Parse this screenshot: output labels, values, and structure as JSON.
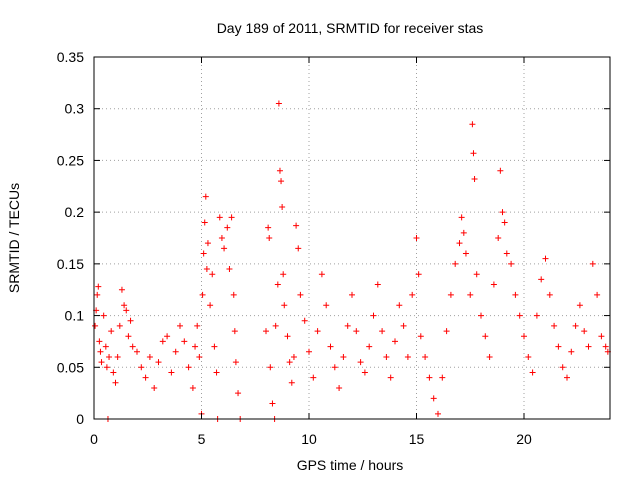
{
  "chart_data": {
    "type": "scatter",
    "title": "Day 189 of 2011, SRMTID for receiver stas",
    "xlabel": "GPS time / hours",
    "ylabel": "SRMTID / TECUs",
    "xlim": [
      0,
      24
    ],
    "ylim": [
      0,
      0.35
    ],
    "xticks": [
      0,
      5,
      10,
      15,
      20
    ],
    "xtick_labels": [
      "0",
      "5",
      "10",
      "15",
      "20"
    ],
    "yticks": [
      0,
      0.05,
      0.1,
      0.15,
      0.2,
      0.25,
      0.3,
      0.35
    ],
    "ytick_labels": [
      "0",
      "0.05",
      "0.1",
      "0.15",
      "0.2",
      "0.25",
      "0.3",
      "0.35"
    ],
    "grid": true,
    "marker": "+",
    "series": [
      {
        "name": "SRMTID",
        "color": "#ff0000",
        "points": [
          [
            0.05,
            0.09
          ],
          [
            0.1,
            0.105
          ],
          [
            0.15,
            0.12
          ],
          [
            0.2,
            0.128
          ],
          [
            0.25,
            0.075
          ],
          [
            0.3,
            0.065
          ],
          [
            0.35,
            0.055
          ],
          [
            0.45,
            0.1
          ],
          [
            0.55,
            0.07
          ],
          [
            0.6,
            0.05
          ],
          [
            0.65,
            0.0
          ],
          [
            0.7,
            0.06
          ],
          [
            0.8,
            0.085
          ],
          [
            0.9,
            0.045
          ],
          [
            1.0,
            0.035
          ],
          [
            1.1,
            0.06
          ],
          [
            1.2,
            0.09
          ],
          [
            1.3,
            0.125
          ],
          [
            1.4,
            0.11
          ],
          [
            1.5,
            0.105
          ],
          [
            1.6,
            0.08
          ],
          [
            1.7,
            0.095
          ],
          [
            1.8,
            0.07
          ],
          [
            2.0,
            0.065
          ],
          [
            2.2,
            0.05
          ],
          [
            2.4,
            0.04
          ],
          [
            2.6,
            0.06
          ],
          [
            2.8,
            0.03
          ],
          [
            3.0,
            0.055
          ],
          [
            3.2,
            0.075
          ],
          [
            3.4,
            0.08
          ],
          [
            3.6,
            0.045
          ],
          [
            3.8,
            0.065
          ],
          [
            4.0,
            0.09
          ],
          [
            4.2,
            0.075
          ],
          [
            4.4,
            0.05
          ],
          [
            4.6,
            0.03
          ],
          [
            4.7,
            0.07
          ],
          [
            4.8,
            0.09
          ],
          [
            4.9,
            0.06
          ],
          [
            5.0,
            0.005
          ],
          [
            5.05,
            0.12
          ],
          [
            5.1,
            0.16
          ],
          [
            5.15,
            0.19
          ],
          [
            5.2,
            0.215
          ],
          [
            5.25,
            0.145
          ],
          [
            5.3,
            0.17
          ],
          [
            5.4,
            0.11
          ],
          [
            5.5,
            0.14
          ],
          [
            5.6,
            0.07
          ],
          [
            5.7,
            0.045
          ],
          [
            5.75,
            0.0
          ],
          [
            5.85,
            0.195
          ],
          [
            5.95,
            0.175
          ],
          [
            6.05,
            0.165
          ],
          [
            6.2,
            0.185
          ],
          [
            6.3,
            0.145
          ],
          [
            6.4,
            0.195
          ],
          [
            6.5,
            0.12
          ],
          [
            6.55,
            0.085
          ],
          [
            6.6,
            0.055
          ],
          [
            6.7,
            0.025
          ],
          [
            6.8,
            0.0
          ],
          [
            8.0,
            0.085
          ],
          [
            8.1,
            0.185
          ],
          [
            8.15,
            0.175
          ],
          [
            8.2,
            0.05
          ],
          [
            8.3,
            0.015
          ],
          [
            8.4,
            0.0
          ],
          [
            8.45,
            0.09
          ],
          [
            8.55,
            0.13
          ],
          [
            8.6,
            0.305
          ],
          [
            8.65,
            0.24
          ],
          [
            8.7,
            0.23
          ],
          [
            8.75,
            0.205
          ],
          [
            8.8,
            0.14
          ],
          [
            8.85,
            0.11
          ],
          [
            9.0,
            0.08
          ],
          [
            9.1,
            0.055
          ],
          [
            9.2,
            0.035
          ],
          [
            9.3,
            0.06
          ],
          [
            9.4,
            0.187
          ],
          [
            9.5,
            0.165
          ],
          [
            9.6,
            0.12
          ],
          [
            9.8,
            0.095
          ],
          [
            10.0,
            0.065
          ],
          [
            10.2,
            0.04
          ],
          [
            10.4,
            0.085
          ],
          [
            10.6,
            0.14
          ],
          [
            10.8,
            0.11
          ],
          [
            11.0,
            0.07
          ],
          [
            11.2,
            0.05
          ],
          [
            11.4,
            0.03
          ],
          [
            11.6,
            0.06
          ],
          [
            11.8,
            0.09
          ],
          [
            12.0,
            0.12
          ],
          [
            12.2,
            0.085
          ],
          [
            12.4,
            0.055
          ],
          [
            12.6,
            0.045
          ],
          [
            12.8,
            0.07
          ],
          [
            13.0,
            0.1
          ],
          [
            13.2,
            0.13
          ],
          [
            13.4,
            0.085
          ],
          [
            13.6,
            0.06
          ],
          [
            13.8,
            0.04
          ],
          [
            14.0,
            0.075
          ],
          [
            14.2,
            0.11
          ],
          [
            14.4,
            0.09
          ],
          [
            14.6,
            0.06
          ],
          [
            14.8,
            0.12
          ],
          [
            15.0,
            0.175
          ],
          [
            15.1,
            0.14
          ],
          [
            15.2,
            0.08
          ],
          [
            15.4,
            0.06
          ],
          [
            15.6,
            0.04
          ],
          [
            15.8,
            0.02
          ],
          [
            16.0,
            0.005
          ],
          [
            16.2,
            0.04
          ],
          [
            16.4,
            0.085
          ],
          [
            16.6,
            0.12
          ],
          [
            16.8,
            0.15
          ],
          [
            17.0,
            0.17
          ],
          [
            17.1,
            0.195
          ],
          [
            17.2,
            0.18
          ],
          [
            17.3,
            0.16
          ],
          [
            17.5,
            0.12
          ],
          [
            17.6,
            0.285
          ],
          [
            17.65,
            0.257
          ],
          [
            17.7,
            0.232
          ],
          [
            17.8,
            0.14
          ],
          [
            18.0,
            0.1
          ],
          [
            18.2,
            0.08
          ],
          [
            18.4,
            0.06
          ],
          [
            18.6,
            0.13
          ],
          [
            18.8,
            0.175
          ],
          [
            18.9,
            0.24
          ],
          [
            19.0,
            0.2
          ],
          [
            19.1,
            0.19
          ],
          [
            19.2,
            0.16
          ],
          [
            19.4,
            0.15
          ],
          [
            19.6,
            0.12
          ],
          [
            19.8,
            0.1
          ],
          [
            20.0,
            0.08
          ],
          [
            20.2,
            0.06
          ],
          [
            20.4,
            0.045
          ],
          [
            20.6,
            0.1
          ],
          [
            20.8,
            0.135
          ],
          [
            21.0,
            0.155
          ],
          [
            21.2,
            0.12
          ],
          [
            21.4,
            0.09
          ],
          [
            21.6,
            0.07
          ],
          [
            21.8,
            0.05
          ],
          [
            22.0,
            0.04
          ],
          [
            22.2,
            0.065
          ],
          [
            22.4,
            0.09
          ],
          [
            22.6,
            0.11
          ],
          [
            22.8,
            0.085
          ],
          [
            23.0,
            0.07
          ],
          [
            23.2,
            0.15
          ],
          [
            23.4,
            0.12
          ],
          [
            23.6,
            0.08
          ],
          [
            23.8,
            0.07
          ],
          [
            23.9,
            0.065
          ]
        ]
      }
    ]
  }
}
